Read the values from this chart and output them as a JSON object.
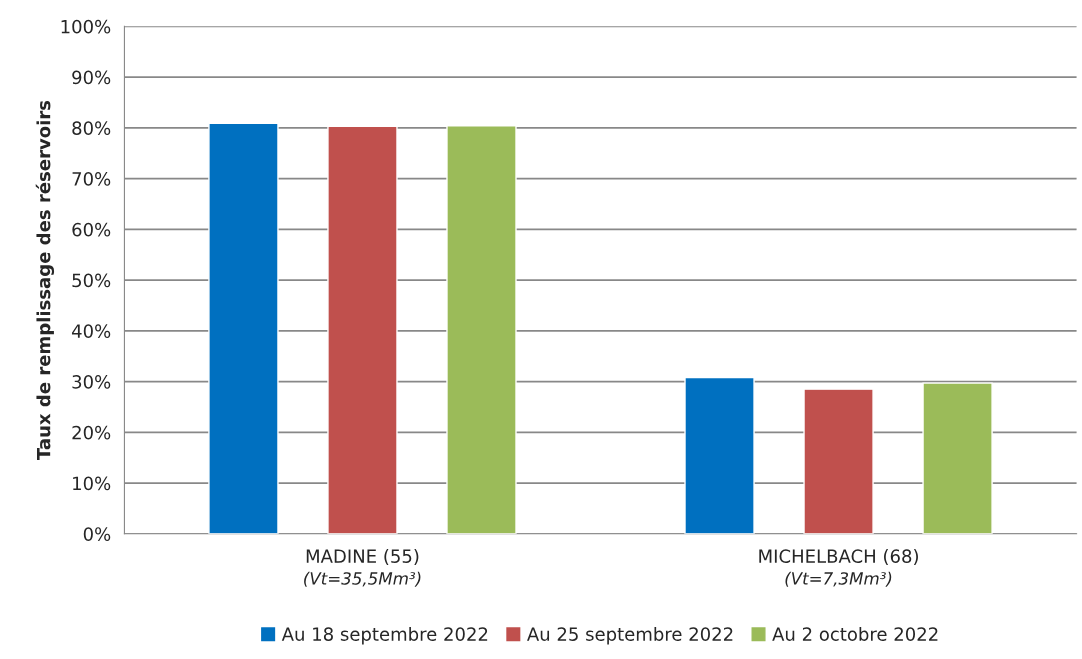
{
  "chart_data": {
    "type": "bar",
    "ylabel": "Taux de remplissage des réservoirs",
    "categories": [
      "MADINE (55)\n(Vt=35,5Mm³)",
      "MICHELBACH (68)\n(Vt=7,3Mm³)"
    ],
    "series": [
      {
        "name": "Au 18 septembre 2022",
        "color": "#0070c0",
        "values": [
          80.9,
          30.8
        ]
      },
      {
        "name": "Au 25 septembre 2022",
        "color": "#c0504d",
        "values": [
          80.3,
          28.5
        ]
      },
      {
        "name": "Au 2 octobre 2022",
        "color": "#9bbb59",
        "values": [
          80.4,
          29.7
        ]
      }
    ],
    "ylim": [
      0,
      100
    ],
    "yticks": [
      {
        "value": 0,
        "label": "0%"
      },
      {
        "value": 10,
        "label": "10%"
      },
      {
        "value": 20,
        "label": "20%"
      },
      {
        "value": 30,
        "label": "30%"
      },
      {
        "value": 40,
        "label": "40%"
      },
      {
        "value": 50,
        "label": "50%"
      },
      {
        "value": 60,
        "label": "60%"
      },
      {
        "value": 70,
        "label": "70%"
      },
      {
        "value": 80,
        "label": "80%"
      },
      {
        "value": 90,
        "label": "90%"
      },
      {
        "value": 100,
        "label": "100%"
      }
    ],
    "grid": "y",
    "legend": "bottom"
  }
}
